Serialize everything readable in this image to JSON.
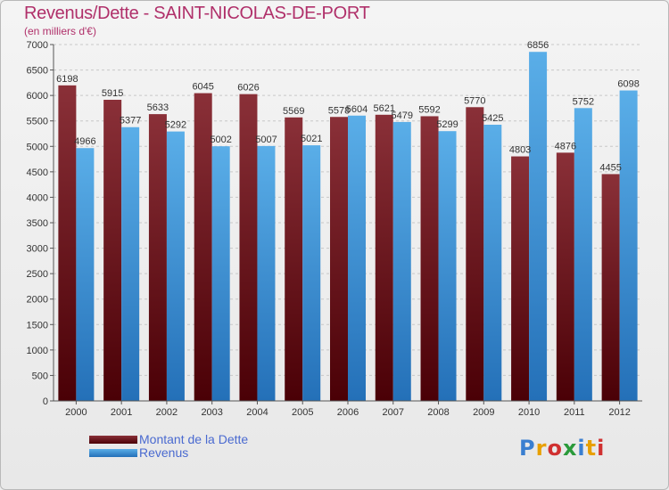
{
  "title": "Revenus/Dette - SAINT-NICOLAS-DE-PORT",
  "subtitle": "(en milliers d'€)",
  "logo": "Proxiti",
  "colors": {
    "dette_dark": "#5a0008",
    "dette_light": "#8a3038",
    "revenus_dark": "#2470b8",
    "revenus_light": "#5aaee8",
    "title": "#b0306a",
    "legend_text": "#4a6ad0"
  },
  "chart_data": {
    "type": "bar",
    "title": "Revenus/Dette - SAINT-NICOLAS-DE-PORT",
    "ylabel": "(en milliers d'€)",
    "categories": [
      "2000",
      "2001",
      "2002",
      "2003",
      "2004",
      "2005",
      "2006",
      "2007",
      "2008",
      "2009",
      "2010",
      "2011",
      "2012"
    ],
    "series": [
      {
        "name": "Montant de la Dette",
        "values": [
          6198,
          5915,
          5633,
          6045,
          6026,
          5569,
          5578,
          5621,
          5592,
          5770,
          4803,
          4876,
          4455
        ]
      },
      {
        "name": "Revenus",
        "values": [
          4966,
          5377,
          5292,
          5002,
          5007,
          5021,
          5604,
          5479,
          5299,
          5425,
          6856,
          5752,
          6098
        ]
      }
    ],
    "yticks": [
      0,
      500,
      1000,
      1500,
      2000,
      2500,
      3000,
      3500,
      4000,
      4500,
      5000,
      5500,
      6000,
      6500,
      7000
    ],
    "ylim": [
      0,
      7000
    ],
    "grid": true,
    "legend": "bottom-left"
  }
}
